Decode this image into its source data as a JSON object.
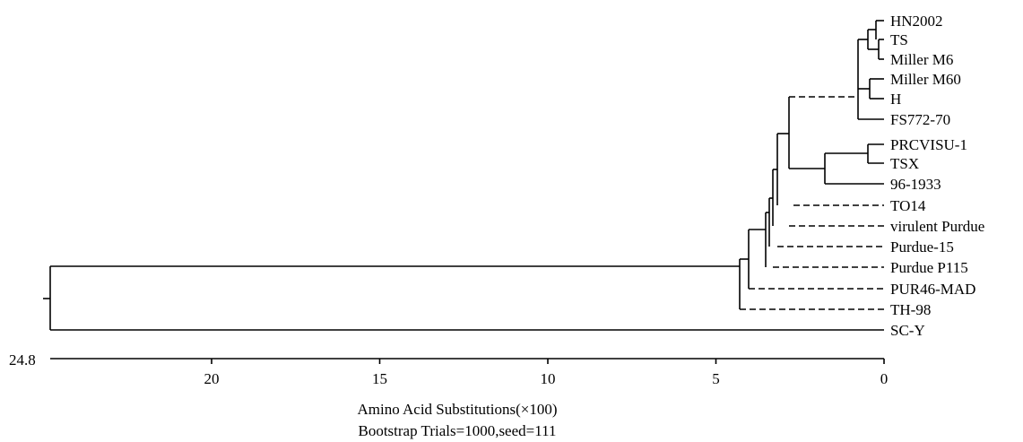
{
  "tree": {
    "leaves": [
      "HN2002",
      "TS",
      "Miller M6",
      "Miller M60",
      "H",
      "FS772-70",
      "PRCVISU-1",
      "TSX",
      "96-1933",
      "TO14",
      "virulent Purdue",
      "Purdue-15",
      "Purdue P115",
      "PUR46-MAD",
      "TH-98",
      "SC-Y"
    ],
    "root_depth": 24.8,
    "root_depth_label": "24.8"
  },
  "axis": {
    "ticks": [
      20,
      15,
      10,
      5,
      0
    ],
    "tick_labels": [
      "20",
      "15",
      "10",
      "5",
      "0"
    ],
    "max": 24.8,
    "label": "Amino Acid Substitutions(×100)"
  },
  "footer": "Bootstrap Trials=1000,seed=111"
}
